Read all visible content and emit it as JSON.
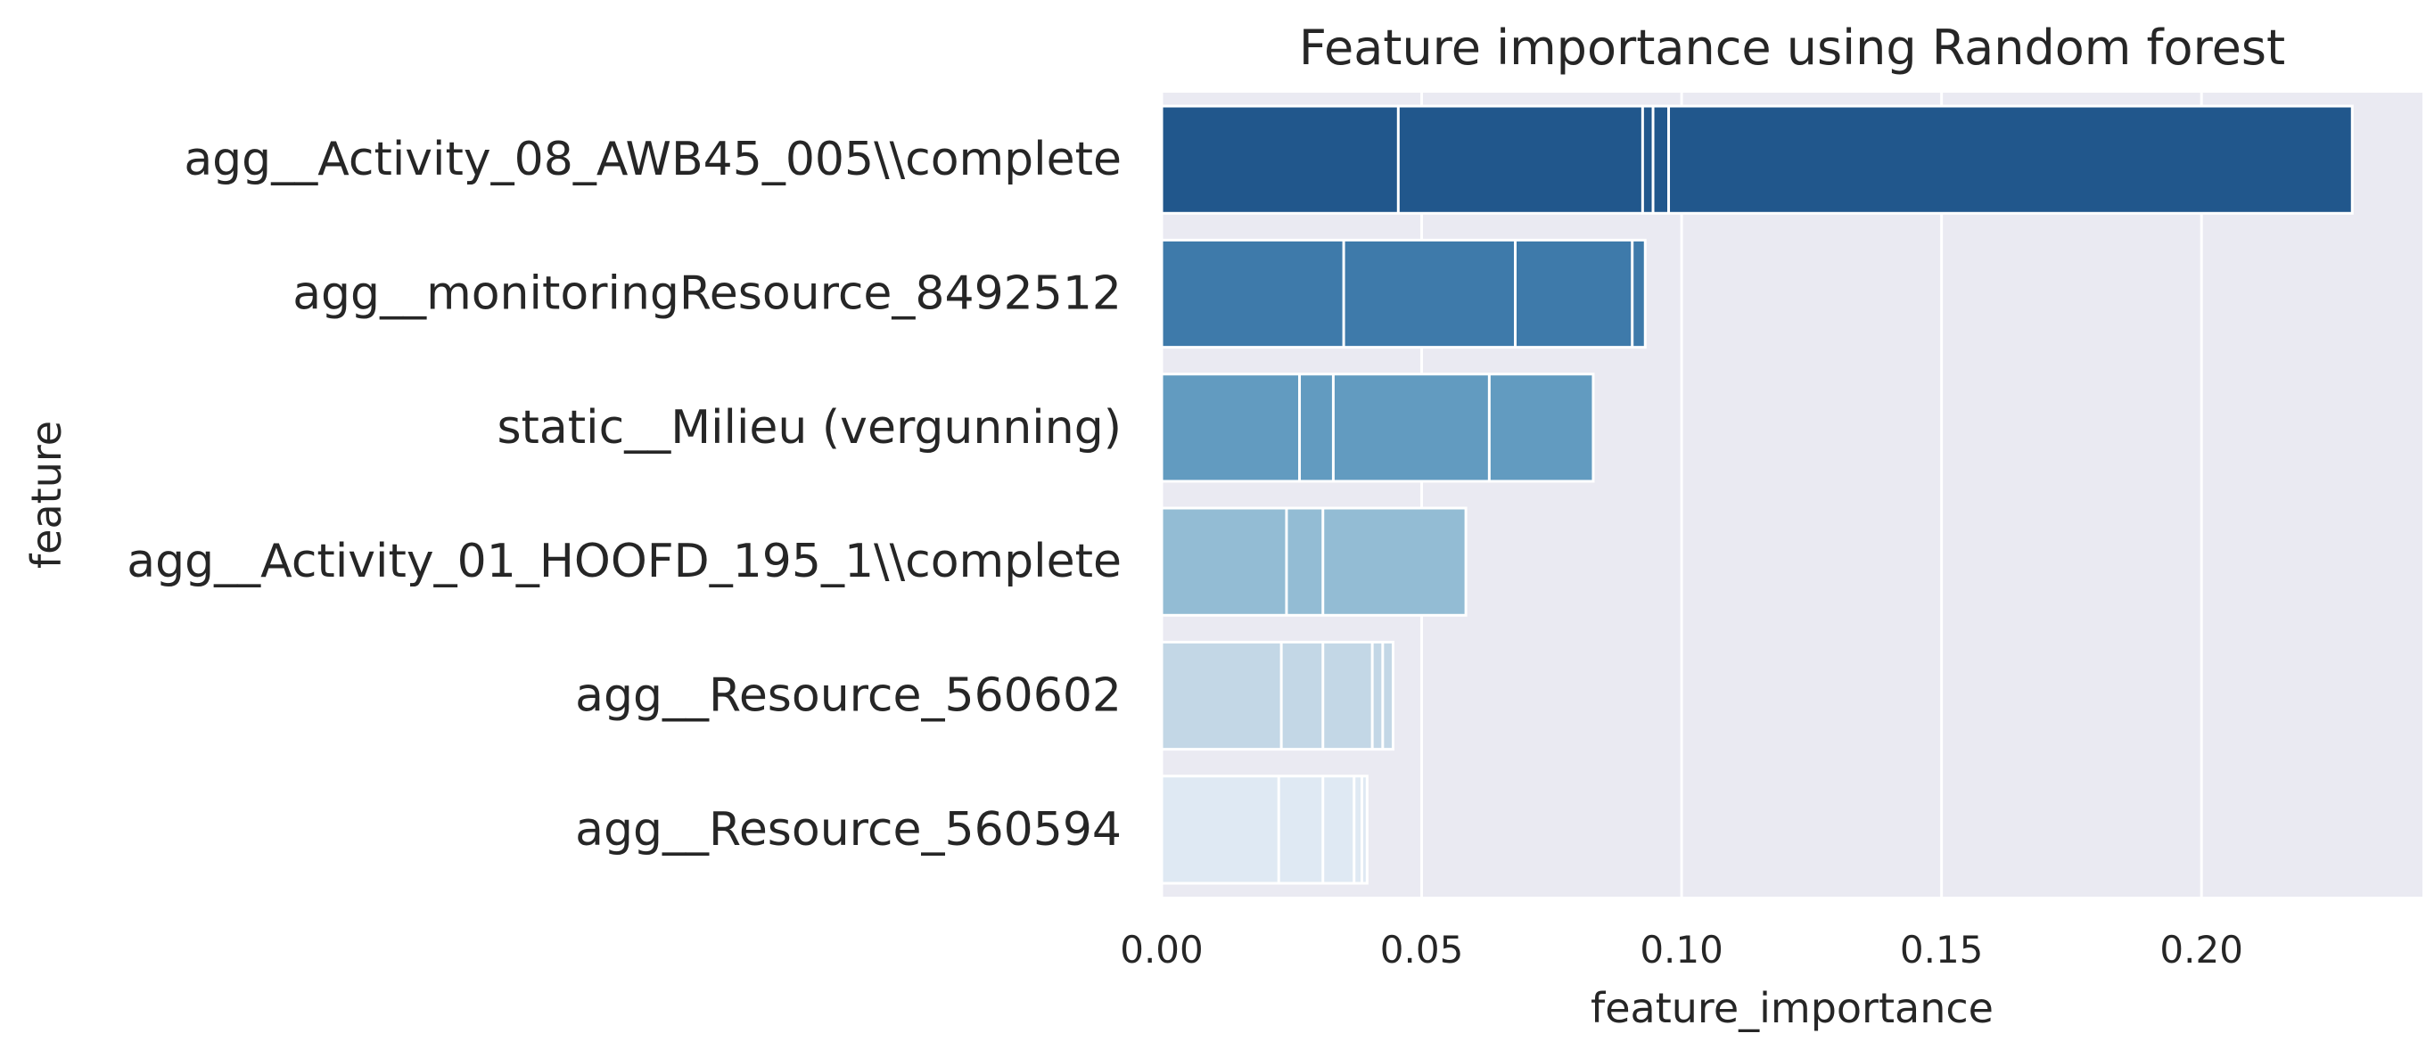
{
  "chart_data": {
    "type": "bar",
    "orientation": "horizontal",
    "title": "Feature importance using Random forest",
    "xlabel": "feature_importance",
    "ylabel": "feature",
    "xlim": [
      0,
      0.2425
    ],
    "xticks": [
      0.0,
      0.05,
      0.1,
      0.15,
      0.2
    ],
    "xtick_labels": [
      "0.00",
      "0.05",
      "0.10",
      "0.15",
      "0.20"
    ],
    "grid": true,
    "background": "#EAEAF2",
    "categories": [
      "agg__Activity_08_AWB45_005\\\\complete",
      "agg__monitoringResource_8492512",
      "static__Milieu (vergunning)",
      "agg__Activity_01_HOOFD_195_1\\\\complete",
      "agg__Resource_560602",
      "agg__Resource_560594"
    ],
    "colors": [
      "#21578C",
      "#3E7AAA",
      "#629BC0",
      "#93BCD4",
      "#C3D7E6",
      "#DFE9F3"
    ],
    "values": [
      0.229,
      0.093,
      0.083,
      0.0585,
      0.0445,
      0.0395
    ],
    "segment_edges": [
      [
        0.0455,
        0.0925,
        0.0945,
        0.0975
      ],
      [
        0.035,
        0.068,
        0.0905
      ],
      [
        0.0265,
        0.033,
        0.063
      ],
      [
        0.024,
        0.031
      ],
      [
        0.023,
        0.031,
        0.0405,
        0.0425
      ],
      [
        0.0225,
        0.031,
        0.037,
        0.0385
      ]
    ]
  }
}
